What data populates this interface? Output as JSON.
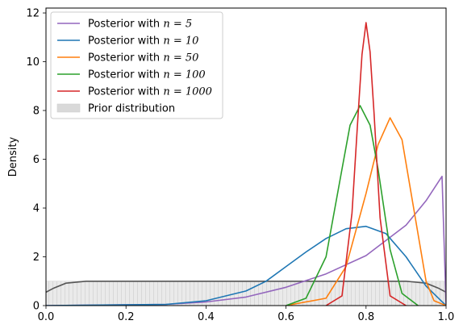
{
  "chart_data": {
    "type": "line",
    "title": "",
    "xlabel": "",
    "ylabel": "Density",
    "xlim": [
      0,
      1
    ],
    "ylim": [
      0,
      12.2
    ],
    "xticks": [
      "0.0",
      "0.2",
      "0.4",
      "0.6",
      "0.8",
      "1.0"
    ],
    "yticks": [
      "0",
      "2",
      "4",
      "6",
      "8",
      "10",
      "12"
    ],
    "grid": false,
    "legend_position": "top-left",
    "prior": {
      "name": "Prior distribution",
      "color": "#555555",
      "fill_color": "#d9d9d9",
      "x": [
        0.0,
        0.02,
        0.05,
        0.1,
        0.2,
        0.3,
        0.4,
        0.5,
        0.6,
        0.7,
        0.8,
        0.9,
        0.95,
        0.98,
        1.0
      ],
      "y": [
        0.55,
        0.72,
        0.92,
        1.0,
        1.0,
        1.0,
        1.0,
        1.0,
        1.0,
        1.0,
        1.0,
        1.0,
        0.92,
        0.72,
        0.55
      ]
    },
    "series": [
      {
        "name": "Posterior with n = 5",
        "name_prefix": "Posterior with ",
        "name_n": "n = 5",
        "color": "#9467bd",
        "x": [
          0.0,
          0.3,
          0.4,
          0.5,
          0.6,
          0.7,
          0.8,
          0.9,
          0.95,
          0.99,
          1.0
        ],
        "y": [
          0.0,
          0.05,
          0.15,
          0.35,
          0.75,
          1.3,
          2.05,
          3.3,
          4.3,
          5.3,
          0.0
        ]
      },
      {
        "name": "Posterior with n = 10",
        "name_prefix": "Posterior with ",
        "name_n": "n = 10",
        "color": "#1f77b4",
        "x": [
          0.0,
          0.3,
          0.4,
          0.5,
          0.55,
          0.6,
          0.65,
          0.7,
          0.75,
          0.8,
          0.85,
          0.9,
          0.95,
          1.0
        ],
        "y": [
          0.0,
          0.05,
          0.2,
          0.6,
          1.0,
          1.6,
          2.2,
          2.75,
          3.15,
          3.25,
          2.95,
          2.0,
          0.8,
          0.0
        ]
      },
      {
        "name": "Posterior with n = 50",
        "name_prefix": "Posterior with ",
        "name_n": "n = 50",
        "color": "#ff7f0e",
        "x": [
          0.6,
          0.7,
          0.75,
          0.8,
          0.83,
          0.86,
          0.89,
          0.92,
          0.95,
          0.97,
          1.0
        ],
        "y": [
          0.0,
          0.3,
          1.6,
          4.6,
          6.6,
          7.7,
          6.8,
          3.9,
          1.0,
          0.2,
          0.0
        ]
      },
      {
        "name": "Posterior with n = 100",
        "name_prefix": "Posterior with ",
        "name_n": "n = 100",
        "color": "#2ca02c",
        "x": [
          0.6,
          0.65,
          0.7,
          0.74,
          0.76,
          0.785,
          0.81,
          0.83,
          0.86,
          0.89,
          0.93
        ],
        "y": [
          0.0,
          0.3,
          2.0,
          5.6,
          7.4,
          8.2,
          7.4,
          5.6,
          2.3,
          0.5,
          0.0
        ]
      },
      {
        "name": "Posterior with n = 1000",
        "name_prefix": "Posterior with ",
        "name_n": "n = 1000",
        "color": "#d62728",
        "x": [
          0.7,
          0.74,
          0.765,
          0.78,
          0.79,
          0.8,
          0.81,
          0.82,
          0.835,
          0.86,
          0.9
        ],
        "y": [
          0.0,
          0.4,
          3.8,
          7.8,
          10.3,
          11.6,
          10.4,
          7.9,
          3.6,
          0.4,
          0.0
        ]
      }
    ]
  }
}
